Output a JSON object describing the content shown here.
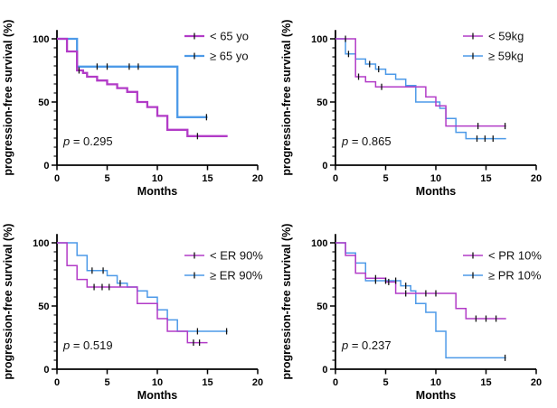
{
  "figure": {
    "description": "Kaplan-Meier progression-free survival curves, 2x2 panel figure",
    "shared_ylabel": "progression-free survival (%)",
    "shared_xlabel": "Months",
    "colors": {
      "group_lt": "#B23BC7",
      "group_ge": "#4D9AE8",
      "axis": "#000000",
      "censor": "#141414"
    }
  },
  "chart_data": [
    {
      "id": "age",
      "type": "line",
      "subtype": "kaplan-meier-step",
      "title": "",
      "xlabel": "Months",
      "ylabel": "progression-free survival (%)",
      "xlim": [
        0,
        20
      ],
      "ylim": [
        0,
        107
      ],
      "xticks": [
        0,
        5,
        10,
        15,
        20
      ],
      "yticks": [
        0,
        50,
        100
      ],
      "grid": false,
      "legend_position": "top-right",
      "p_label": "p = 0.295",
      "series": [
        {
          "name": "< 65 yo",
          "color": "#B23BC7",
          "steps": [
            [
              0,
              100
            ],
            [
              1,
              90
            ],
            [
              2,
              75
            ],
            [
              2.6,
              73
            ],
            [
              3,
              70
            ],
            [
              4,
              67
            ],
            [
              5,
              64
            ],
            [
              6,
              61
            ],
            [
              7,
              58
            ],
            [
              8,
              50
            ],
            [
              9,
              46
            ],
            [
              10,
              39
            ],
            [
              11,
              28
            ],
            [
              13,
              23
            ]
          ],
          "end_month": 17,
          "censor_marks": [
            [
              2.2,
              75
            ],
            [
              14,
              23
            ]
          ]
        },
        {
          "name": "≥ 65 yo",
          "color": "#4D9AE8",
          "steps": [
            [
              0,
              100
            ],
            [
              2,
              78
            ],
            [
              12,
              38
            ]
          ],
          "end_month": 15,
          "censor_marks": [
            [
              4,
              78
            ],
            [
              5,
              78
            ],
            [
              7.2,
              78
            ],
            [
              8.1,
              78
            ],
            [
              14.9,
              38
            ]
          ]
        }
      ]
    },
    {
      "id": "weight",
      "type": "line",
      "subtype": "kaplan-meier-step",
      "title": "",
      "xlabel": "Months",
      "ylabel": "progression-free survival (%)",
      "xlim": [
        0,
        20
      ],
      "ylim": [
        0,
        107
      ],
      "xticks": [
        0,
        5,
        10,
        15,
        20
      ],
      "yticks": [
        0,
        50,
        100
      ],
      "grid": false,
      "legend_position": "top-right",
      "p_label": "p = 0.865",
      "series": [
        {
          "name": "< 59kg",
          "color": "#B23BC7",
          "steps": [
            [
              0,
              100
            ],
            [
              2,
              70
            ],
            [
              3,
              66
            ],
            [
              4,
              62
            ],
            [
              9,
              54
            ],
            [
              10,
              47
            ],
            [
              11,
              31
            ]
          ],
          "end_month": 17,
          "censor_marks": [
            [
              1,
              100
            ],
            [
              2.3,
              70
            ],
            [
              4.6,
              62
            ],
            [
              14.2,
              31
            ],
            [
              16.9,
              31
            ]
          ]
        },
        {
          "name": "≥ 59kg",
          "color": "#4D9AE8",
          "steps": [
            [
              0,
              100
            ],
            [
              1,
              88
            ],
            [
              2,
              84
            ],
            [
              3,
              80
            ],
            [
              4,
              76
            ],
            [
              5,
              72
            ],
            [
              6,
              68
            ],
            [
              7,
              63
            ],
            [
              8,
              50
            ],
            [
              10.4,
              45
            ],
            [
              11,
              37
            ],
            [
              12,
              26
            ],
            [
              13,
              21
            ]
          ],
          "end_month": 17,
          "censor_marks": [
            [
              1.3,
              88
            ],
            [
              3.4,
              80
            ],
            [
              4.3,
              76
            ],
            [
              14.1,
              21
            ],
            [
              14.9,
              21
            ],
            [
              15.7,
              21
            ]
          ]
        }
      ]
    },
    {
      "id": "er",
      "type": "line",
      "subtype": "kaplan-meier-step",
      "title": "",
      "xlabel": "Months",
      "ylabel": "progression-free survival (%)",
      "xlim": [
        0,
        20
      ],
      "ylim": [
        0,
        107
      ],
      "xticks": [
        0,
        5,
        10,
        15,
        20
      ],
      "yticks": [
        0,
        50,
        100
      ],
      "grid": false,
      "legend_position": "top-right",
      "p_label": "p = 0.519",
      "series": [
        {
          "name": "< ER 90%",
          "color": "#B23BC7",
          "steps": [
            [
              0,
              100
            ],
            [
              1,
              82
            ],
            [
              2,
              71
            ],
            [
              3,
              65
            ],
            [
              8,
              52
            ],
            [
              10,
              40
            ],
            [
              11,
              30
            ],
            [
              13,
              21
            ]
          ],
          "end_month": 15,
          "censor_marks": [
            [
              3.7,
              65
            ],
            [
              4.5,
              65
            ],
            [
              5.2,
              65
            ],
            [
              13.6,
              21
            ],
            [
              14.2,
              21
            ]
          ]
        },
        {
          "name": "≥ ER 90%",
          "color": "#4D9AE8",
          "steps": [
            [
              0,
              100
            ],
            [
              2,
              90
            ],
            [
              3,
              78
            ],
            [
              5,
              74
            ],
            [
              6,
              68
            ],
            [
              7,
              65
            ],
            [
              8,
              62
            ],
            [
              9,
              57
            ],
            [
              10,
              47
            ],
            [
              11,
              39
            ],
            [
              12,
              30
            ]
          ],
          "end_month": 17,
          "censor_marks": [
            [
              3.5,
              78
            ],
            [
              4.6,
              78
            ],
            [
              6.3,
              68
            ],
            [
              14,
              30
            ],
            [
              16.9,
              30
            ]
          ]
        }
      ]
    },
    {
      "id": "pr",
      "type": "line",
      "subtype": "kaplan-meier-step",
      "title": "",
      "xlabel": "Months",
      "ylabel": "progression-free survival (%)",
      "xlim": [
        0,
        20
      ],
      "ylim": [
        0,
        107
      ],
      "xticks": [
        0,
        5,
        10,
        15,
        20
      ],
      "yticks": [
        0,
        50,
        100
      ],
      "grid": false,
      "legend_position": "top-right",
      "p_label": "p = 0.237",
      "series": [
        {
          "name": "< PR 10%",
          "color": "#B23BC7",
          "steps": [
            [
              0,
              100
            ],
            [
              1,
              90
            ],
            [
              2,
              76
            ],
            [
              3,
              72
            ],
            [
              5,
              69
            ],
            [
              6,
              60
            ],
            [
              12,
              48
            ],
            [
              13,
              40
            ]
          ],
          "end_month": 17,
          "censor_marks": [
            [
              4,
              72
            ],
            [
              5.3,
              69
            ],
            [
              7,
              60
            ],
            [
              9,
              60
            ],
            [
              10,
              60
            ],
            [
              14,
              40
            ],
            [
              15,
              40
            ],
            [
              16,
              40
            ]
          ]
        },
        {
          "name": "≥ PR 10%",
          "color": "#4D9AE8",
          "steps": [
            [
              0,
              100
            ],
            [
              1,
              92
            ],
            [
              2,
              84
            ],
            [
              3,
              70
            ],
            [
              6.5,
              66
            ],
            [
              7.5,
              62
            ],
            [
              8,
              52
            ],
            [
              9,
              45
            ],
            [
              10,
              30
            ],
            [
              11,
              9
            ]
          ],
          "end_month": 17,
          "censor_marks": [
            [
              4,
              70
            ],
            [
              5,
              70
            ],
            [
              6,
              70
            ],
            [
              7,
              66
            ],
            [
              16.9,
              9
            ]
          ]
        }
      ]
    }
  ]
}
